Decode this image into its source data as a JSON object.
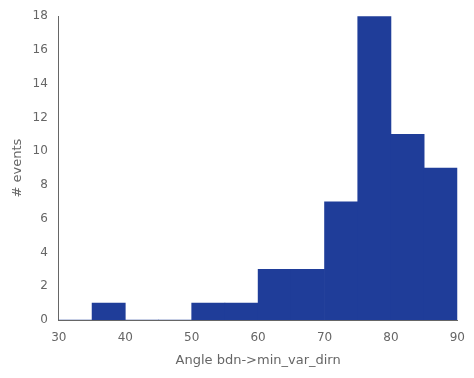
{
  "chart_data": {
    "type": "histogram",
    "bins": [
      30,
      35,
      40,
      45,
      50,
      55,
      60,
      65,
      70,
      75,
      80,
      85,
      90
    ],
    "values": [
      0,
      1,
      0,
      0,
      1,
      1,
      3,
      3,
      7,
      18,
      11,
      9
    ],
    "color": "#1f3d99",
    "xlabel": "Angle bdn->min_var_dirn",
    "ylabel": "# events",
    "xlim": [
      30,
      90
    ],
    "ylim": [
      0,
      18
    ],
    "xticks": [
      30,
      40,
      50,
      60,
      70,
      80,
      90
    ],
    "yticks": [
      0,
      2,
      4,
      6,
      8,
      10,
      12,
      14,
      16,
      18
    ],
    "grid": false
  }
}
